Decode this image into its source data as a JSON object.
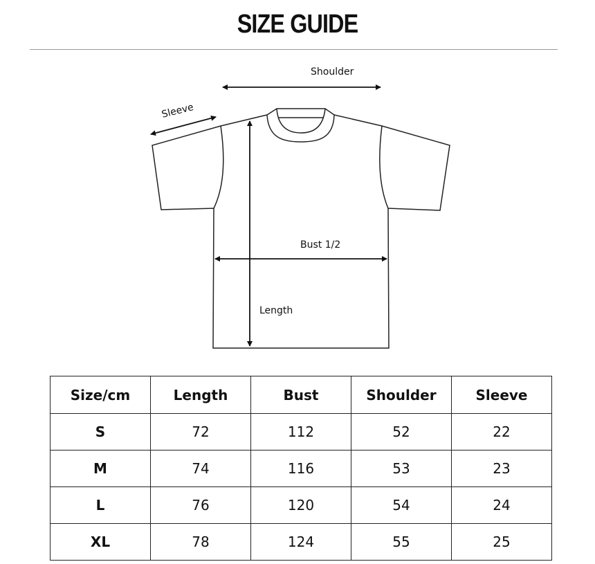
{
  "title": "SIZE GUIDE",
  "diagram": {
    "labels": {
      "shoulder": "Shoulder",
      "sleeve": "Sleeve",
      "bust": "Bust 1/2",
      "length": "Length"
    }
  },
  "table": {
    "headers": [
      "Size/cm",
      "Length",
      "Bust",
      "Shoulder",
      "Sleeve"
    ],
    "rows": [
      [
        "S",
        "72",
        "112",
        "52",
        "22"
      ],
      [
        "M",
        "74",
        "116",
        "53",
        "23"
      ],
      [
        "L",
        "76",
        "120",
        "54",
        "24"
      ],
      [
        "XL",
        "78",
        "124",
        "55",
        "25"
      ]
    ]
  }
}
